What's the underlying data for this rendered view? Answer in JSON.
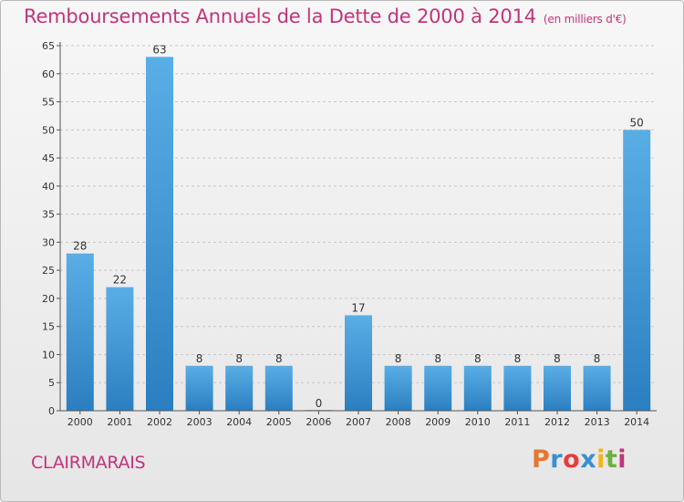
{
  "header": {
    "title": "Remboursements Annuels de la Dette de 2000 à 2014",
    "unit": "(en milliers d'€)"
  },
  "footer": {
    "commune": "CLAIRMARAIS",
    "logo_text": "Proxiti",
    "logo_colors": [
      "#e8762b",
      "#3a8fd1",
      "#e83c3c",
      "#3a8fd1",
      "#f2b418",
      "#6ab23c",
      "#c0357a"
    ]
  },
  "colors": {
    "title": "#c0357a",
    "bar_light": "#5aaee6",
    "bar_dark": "#2b7fc0",
    "grid": "#c8c8c8",
    "axis": "#555555"
  },
  "chart_data": {
    "type": "bar",
    "title": "Remboursements Annuels de la Dette de 2000 à 2014",
    "categories": [
      "2000",
      "2001",
      "2002",
      "2003",
      "2004",
      "2005",
      "2006",
      "2007",
      "2008",
      "2009",
      "2010",
      "2011",
      "2012",
      "2013",
      "2014"
    ],
    "values": [
      28,
      22,
      63,
      8,
      8,
      8,
      0,
      17,
      8,
      8,
      8,
      8,
      8,
      8,
      50
    ],
    "y_ticks": [
      0,
      5,
      10,
      15,
      20,
      25,
      30,
      35,
      40,
      45,
      50,
      55,
      60,
      65
    ],
    "ylim": [
      0,
      65
    ],
    "grid": true,
    "xlabel": "",
    "ylabel": ""
  }
}
